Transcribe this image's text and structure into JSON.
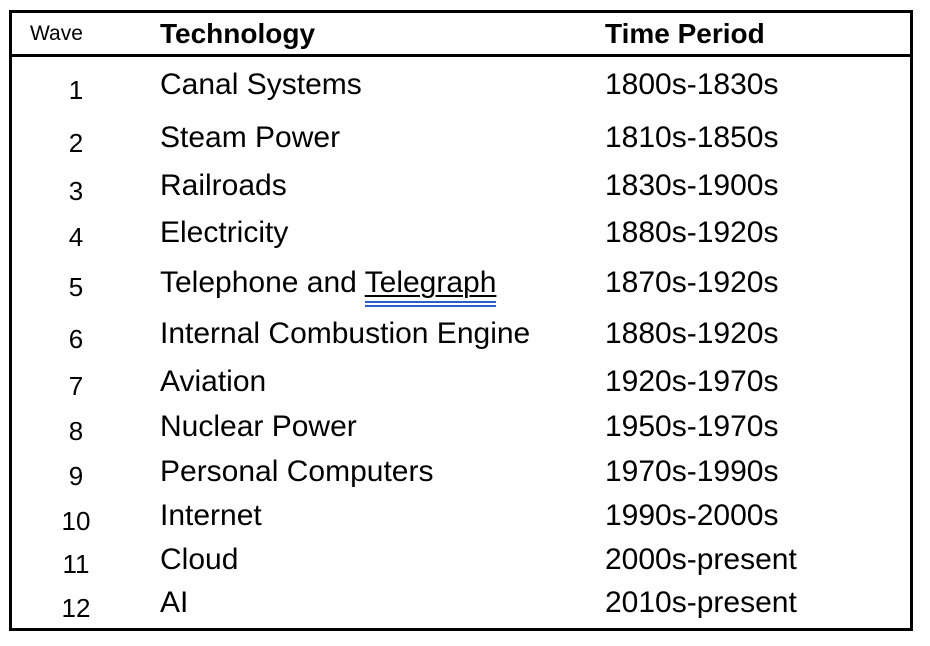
{
  "colors": {
    "text": "#000000",
    "border": "#000000",
    "grammar_underline_blue": "#2B5FC4"
  },
  "table": {
    "columns": {
      "wave_label": "Wave",
      "technology_label": "Technology",
      "time_period_label": "Time Period"
    },
    "rows": [
      {
        "wave": "1",
        "technology": "Canal Systems",
        "technology_underlined": "",
        "time_period": "1800s-1830s"
      },
      {
        "wave": "2",
        "technology": "Steam Power",
        "technology_underlined": "",
        "time_period": "1810s-1850s"
      },
      {
        "wave": "3",
        "technology": "Railroads",
        "technology_underlined": "",
        "time_period": "1830s-1900s"
      },
      {
        "wave": "4",
        "technology": "Electricity",
        "technology_underlined": "",
        "time_period": "1880s-1920s"
      },
      {
        "wave": "5",
        "technology": "Telephone and ",
        "technology_underlined": "Telegraph",
        "time_period": "1870s-1920s"
      },
      {
        "wave": "6",
        "technology": "Internal Combustion Engine",
        "technology_underlined": "",
        "time_period": "1880s-1920s"
      },
      {
        "wave": "7",
        "technology": "Aviation",
        "technology_underlined": "",
        "time_period": "1920s-1970s"
      },
      {
        "wave": "8",
        "technology": "Nuclear Power",
        "technology_underlined": "",
        "time_period": "1950s-1970s"
      },
      {
        "wave": "9",
        "technology": "Personal Computers",
        "technology_underlined": "",
        "time_period": "1970s-1990s"
      },
      {
        "wave": "10",
        "technology": "Internet",
        "technology_underlined": "",
        "time_period": "1990s-2000s"
      },
      {
        "wave": "11",
        "technology": "Cloud",
        "technology_underlined": "",
        "time_period": "2000s-present"
      },
      {
        "wave": "12",
        "technology": "AI",
        "technology_underlined": "",
        "time_period": "2010s-present"
      }
    ]
  }
}
